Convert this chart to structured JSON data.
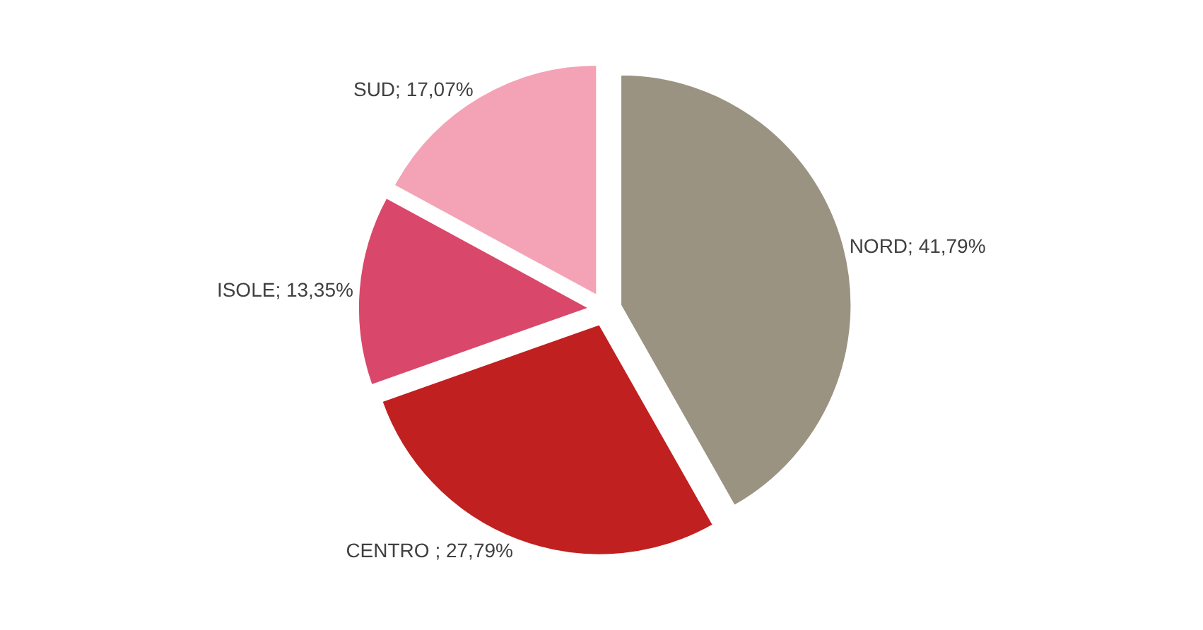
{
  "chart_data": {
    "type": "pie",
    "categories": [
      "NORD",
      "CENTRO ",
      "ISOLE",
      "SUD"
    ],
    "values": [
      41.79,
      27.79,
      13.35,
      17.07
    ],
    "colors": [
      "#9b9382",
      "#c0201f",
      "#d9486a",
      "#f4a3b6"
    ],
    "value_labels": [
      "41,79%",
      "27,79%",
      "13,35%",
      "17,07%"
    ]
  }
}
